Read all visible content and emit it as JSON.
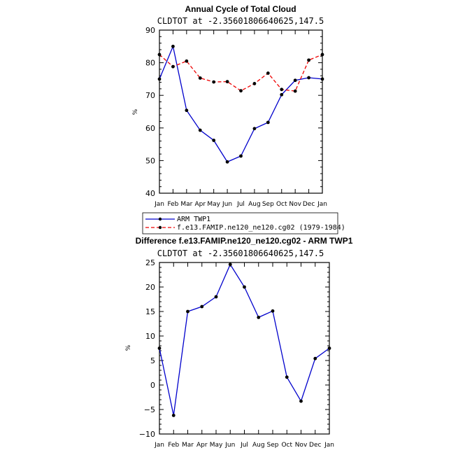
{
  "chart_data": [
    {
      "type": "line",
      "title": "Annual Cycle of Total Cloud",
      "subtitle": "CLDTOT at -2.35601806640625,147.5",
      "ylabel": "%",
      "ylim": [
        40,
        90
      ],
      "yticks": [
        40,
        50,
        60,
        70,
        80,
        90
      ],
      "categories": [
        "Jan",
        "Feb",
        "Mar",
        "Apr",
        "May",
        "Jun",
        "Jul",
        "Aug",
        "Sep",
        "Oct",
        "Nov",
        "Dec",
        "Jan"
      ],
      "grid": false,
      "legend_position": "below",
      "series": [
        {
          "name": "ARM TWP1",
          "color": "#0000cc",
          "dash": "solid",
          "values": [
            75.0,
            85.0,
            65.4,
            59.3,
            56.2,
            49.6,
            51.4,
            59.8,
            61.7,
            70.2,
            74.6,
            75.4,
            75.0
          ]
        },
        {
          "name": "f.e13.FAMIP.ne120_ne120.cg02 (1979-1984)",
          "color": "#ee0000",
          "dash": "dashed",
          "values": [
            82.5,
            78.8,
            80.5,
            75.3,
            74.1,
            74.2,
            71.4,
            73.6,
            76.8,
            71.8,
            71.3,
            80.8,
            82.5
          ]
        }
      ]
    },
    {
      "type": "line",
      "title": "Difference f.e13.FAMIP.ne120_ne120.cg02 - ARM TWP1",
      "subtitle": "CLDTOT at -2.35601806640625,147.5",
      "ylabel": "%",
      "ylim": [
        -10,
        25
      ],
      "yticks": [
        -10,
        -5,
        0,
        5,
        10,
        15,
        20,
        25
      ],
      "categories": [
        "Jan",
        "Feb",
        "Mar",
        "Apr",
        "May",
        "Jun",
        "Jul",
        "Aug",
        "Sep",
        "Oct",
        "Nov",
        "Dec",
        "Jan"
      ],
      "grid": false,
      "series": [
        {
          "color": "#0000cc",
          "dash": "solid",
          "values": [
            7.5,
            -6.2,
            15.0,
            16.0,
            18.0,
            24.6,
            20.0,
            13.8,
            15.1,
            1.6,
            -3.3,
            5.4,
            7.5
          ]
        }
      ]
    }
  ]
}
